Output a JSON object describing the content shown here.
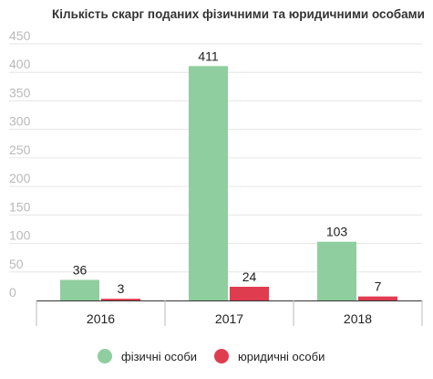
{
  "chart_data": {
    "type": "bar",
    "title": "Кількість скарг поданих фізичними та юридичними особами",
    "categories": [
      "2016",
      "2017",
      "2018"
    ],
    "series": [
      {
        "name": "фізичні особи",
        "values": [
          36,
          411,
          103
        ],
        "color": "#8fce9e"
      },
      {
        "name": "юридичні особи",
        "values": [
          3,
          24,
          7
        ],
        "color": "#e03c50"
      }
    ],
    "yticks": [
      0,
      50,
      100,
      150,
      200,
      250,
      300,
      350,
      400,
      450
    ],
    "ylim": [
      0,
      450
    ],
    "grid": true,
    "legend": "bottom-center",
    "xlabel": "",
    "ylabel": ""
  }
}
